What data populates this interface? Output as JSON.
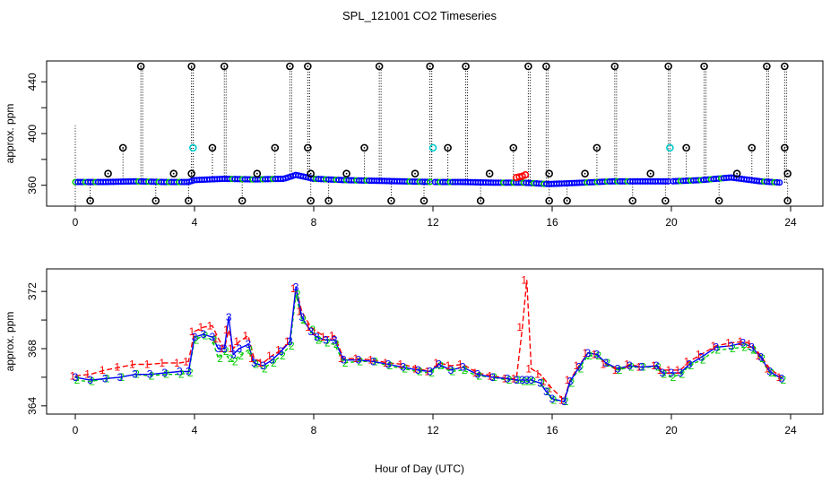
{
  "title": "SPL_121001  CO2 Timeseries",
  "xlabel": "Hour of Day (UTC)",
  "colors": {
    "series1": "#ff0000",
    "series2": "#00cc00",
    "series3": "#0000ff",
    "flag": "#000000",
    "cyan": "#00cccc",
    "dotted": "#000000"
  },
  "chart_data": [
    {
      "type": "scatter",
      "name": "top-panel",
      "ylabel": "approx. ppm",
      "xlim": [
        0,
        24
      ],
      "ylim": [
        348,
        452
      ],
      "xticks": [
        "0",
        "4",
        "8",
        "12",
        "16",
        "20",
        "24"
      ],
      "yticks": [
        "360",
        "400",
        "440"
      ],
      "flag_high_value": 450,
      "flag_low_value": 352,
      "baseline": [
        [
          0,
          362.5
        ],
        [
          1,
          362.5
        ],
        [
          2,
          363
        ],
        [
          3,
          362.5
        ],
        [
          3.8,
          362.5
        ],
        [
          4,
          364
        ],
        [
          5,
          365
        ],
        [
          6,
          364.5
        ],
        [
          7,
          365
        ],
        [
          7.4,
          368
        ],
        [
          7.8,
          366
        ],
        [
          8,
          365
        ],
        [
          9,
          364
        ],
        [
          10,
          363.5
        ],
        [
          11,
          363
        ],
        [
          12,
          362.5
        ],
        [
          13,
          362.5
        ],
        [
          14,
          362
        ],
        [
          15,
          362
        ],
        [
          15.8,
          361
        ],
        [
          16,
          361
        ],
        [
          17,
          362
        ],
        [
          18,
          363
        ],
        [
          19,
          363
        ],
        [
          20,
          363
        ],
        [
          21,
          364
        ],
        [
          22,
          366
        ],
        [
          23,
          363
        ],
        [
          23.7,
          362
        ]
      ],
      "flag_high_hours": [
        2.2,
        3.9,
        5.0,
        7.2,
        7.8,
        10.2,
        11.9,
        13.1,
        15.2,
        15.8,
        18.1,
        19.9,
        21.1,
        23.2,
        23.8
      ],
      "flag_low_hours": [
        0.5,
        2.7,
        3.8,
        5.6,
        7.9,
        8.5,
        10.6,
        11.7,
        13.6,
        15.9,
        16.5,
        18.7,
        19.8,
        21.6,
        23.9
      ],
      "flag_mid_hours": [
        1.6,
        4.6,
        6.7,
        7.8,
        9.7,
        12.5,
        14.7,
        17.5,
        20.5,
        22.7,
        23.8
      ],
      "flag_mid_value": 389,
      "flag_lowmid_hours": [
        1.1,
        3.3,
        3.9,
        6.1,
        7.9,
        9.1,
        11.4,
        13.9,
        15.9,
        17.1,
        19.3,
        22.2,
        23.9
      ],
      "flag_lowmid_value": 369,
      "cyan_points": [
        [
          3.95,
          389
        ],
        [
          12.0,
          389
        ],
        [
          19.95,
          389
        ]
      ],
      "red_cluster": [
        [
          14.8,
          366
        ],
        [
          14.9,
          366.5
        ],
        [
          15.0,
          367
        ],
        [
          15.1,
          368
        ]
      ]
    },
    {
      "type": "line",
      "name": "bottom-panel",
      "ylabel": "approx. ppm",
      "xlim": [
        0,
        24
      ],
      "ylim": [
        363.8,
        373.2
      ],
      "xticks": [
        "0",
        "4",
        "8",
        "12",
        "16",
        "20",
        "24"
      ],
      "yticks": [
        "364",
        "368",
        "372"
      ],
      "series_labels": [
        "1",
        "2",
        "3"
      ],
      "x": [
        0,
        0.5,
        1,
        1.5,
        2,
        2.5,
        3,
        3.5,
        3.8,
        4.0,
        4.3,
        4.6,
        4.8,
        5.0,
        5.15,
        5.3,
        5.5,
        5.8,
        6.0,
        6.3,
        6.6,
        6.9,
        7.2,
        7.4,
        7.6,
        7.9,
        8.1,
        8.4,
        8.7,
        9.0,
        9.5,
        10,
        10.5,
        11,
        11.5,
        11.9,
        12.2,
        12.6,
        13,
        13.5,
        14,
        14.5,
        14.8,
        15.0,
        15.15,
        15.3,
        15.6,
        15.8,
        16.0,
        16.4,
        16.6,
        16.9,
        17.2,
        17.5,
        17.8,
        18.2,
        18.6,
        19,
        19.5,
        19.7,
        20.0,
        20.3,
        20.6,
        21,
        21.5,
        22,
        22.4,
        22.7,
        23,
        23.3,
        23.7
      ],
      "series": [
        {
          "name": "1",
          "values": [
            366.1,
            366.2,
            366.5,
            366.7,
            366.9,
            366.9,
            367.0,
            367.0,
            367.1,
            369.2,
            369.5,
            369.6,
            368.7,
            368.0,
            369.3,
            368.0,
            368.5,
            368.9,
            367.3,
            367.0,
            367.5,
            367.9,
            368.5,
            372.2,
            370.6,
            369.5,
            369.2,
            368.8,
            368.9,
            367.3,
            367.3,
            367.2,
            367.0,
            366.9,
            366.6,
            366.4,
            367.0,
            366.8,
            366.9,
            366.3,
            366.1,
            365.9,
            365.9,
            369.5,
            372.8,
            366.6,
            366.2,
            365.7,
            365.2,
            364.4,
            365.8,
            366.8,
            367.7,
            367.6,
            366.9,
            366.5,
            366.9,
            366.7,
            366.8,
            366.5,
            366.5,
            366.5,
            367.1,
            367.6,
            368.2,
            368.4,
            368.5,
            368.3,
            367.5,
            366.6,
            366.0
          ]
        },
        {
          "name": "2",
          "values": [
            365.8,
            365.7,
            365.9,
            366.0,
            366.2,
            366.1,
            366.2,
            366.2,
            366.3,
            368.6,
            368.9,
            368.6,
            367.3,
            367.8,
            367.3,
            367.1,
            367.5,
            367.9,
            366.9,
            366.6,
            367.0,
            367.5,
            368.2,
            371.8,
            370.0,
            369.3,
            368.6,
            368.4,
            368.3,
            367.0,
            367.1,
            367.1,
            366.8,
            366.6,
            366.4,
            366.3,
            366.8,
            366.4,
            366.5,
            366.1,
            366.0,
            365.8,
            365.8,
            365.7,
            365.7,
            365.7,
            365.6,
            365.0,
            364.4,
            364.3,
            365.6,
            366.6,
            367.5,
            367.5,
            367.0,
            366.5,
            366.7,
            366.7,
            366.7,
            366.2,
            366.0,
            366.2,
            366.8,
            367.2,
            367.9,
            368.0,
            368.1,
            367.9,
            367.3,
            366.3,
            365.8
          ]
        },
        {
          "name": "3",
          "values": [
            366.0,
            365.8,
            365.9,
            366.0,
            366.2,
            366.2,
            366.3,
            366.4,
            366.4,
            368.8,
            369.0,
            368.8,
            368.0,
            368.0,
            370.2,
            367.6,
            368.0,
            368.3,
            367.0,
            366.8,
            367.2,
            367.8,
            368.5,
            372.3,
            370.2,
            369.2,
            368.8,
            368.6,
            368.6,
            367.2,
            367.2,
            367.1,
            366.9,
            366.7,
            366.5,
            366.4,
            366.9,
            366.5,
            366.7,
            366.2,
            366.0,
            365.9,
            365.8,
            365.8,
            365.8,
            365.8,
            365.6,
            365.0,
            364.5,
            364.3,
            365.7,
            366.7,
            367.7,
            367.6,
            367.0,
            366.6,
            366.8,
            366.7,
            366.8,
            366.3,
            366.3,
            366.3,
            366.9,
            367.4,
            368.1,
            368.2,
            368.4,
            368.1,
            367.4,
            366.4,
            365.9
          ]
        }
      ]
    }
  ]
}
